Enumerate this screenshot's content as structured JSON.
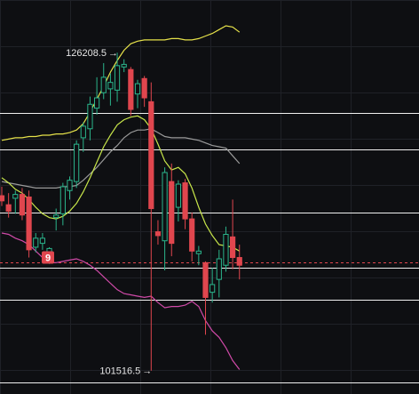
{
  "chart_data": {
    "type": "candlestick",
    "ylim": [
      99700,
      130300
    ],
    "grid": true,
    "colors": {
      "background": "#0e0f12",
      "grid": "#1f2127",
      "up": "#2bb58c",
      "down": "#e0464e",
      "upper_band": "#e6e24a",
      "lower_band": "#d04aa8",
      "middle_band": "#9a9a9a",
      "fast_ma": "#c8e64a",
      "horizontal_levels": "#f0f0f0",
      "dashed_level": "#e0464e",
      "badge": "#e0464e"
    },
    "horizontal_levels": [
      121500,
      118700,
      113800,
      109500,
      107000,
      100600
    ],
    "dashed_level": 109900,
    "annotations": {
      "high_label": "126208.5",
      "low_label": "101516.5",
      "high_value": 126208.5,
      "low_value": 101516.5,
      "badge_text": "9",
      "badge_value": 110300
    },
    "candles": [
      {
        "o": 115100,
        "h": 115800,
        "l": 114300,
        "c": 114700
      },
      {
        "o": 114400,
        "h": 115300,
        "l": 113400,
        "c": 113900
      },
      {
        "o": 114900,
        "h": 115500,
        "l": 113700,
        "c": 115200
      },
      {
        "o": 115200,
        "h": 115700,
        "l": 113200,
        "c": 113600
      },
      {
        "o": 115000,
        "h": 115500,
        "l": 110300,
        "c": 110900
      },
      {
        "o": 111100,
        "h": 112200,
        "l": 110700,
        "c": 111800
      },
      {
        "o": 111400,
        "h": 112200,
        "l": 110900,
        "c": 111800
      },
      {
        "o": 110300,
        "h": 111100,
        "l": 109800,
        "c": 111000
      },
      {
        "o": 113400,
        "h": 114100,
        "l": 112400,
        "c": 113600
      },
      {
        "o": 113700,
        "h": 116100,
        "l": 112800,
        "c": 115800
      },
      {
        "o": 115500,
        "h": 116600,
        "l": 114800,
        "c": 116300
      },
      {
        "o": 116200,
        "h": 119400,
        "l": 115700,
        "c": 119100
      },
      {
        "o": 119600,
        "h": 120800,
        "l": 118500,
        "c": 120500
      },
      {
        "o": 120300,
        "h": 122800,
        "l": 119400,
        "c": 122200
      },
      {
        "o": 121900,
        "h": 124300,
        "l": 121400,
        "c": 122700
      },
      {
        "o": 123100,
        "h": 125400,
        "l": 122600,
        "c": 124300
      },
      {
        "o": 123400,
        "h": 124600,
        "l": 122100,
        "c": 123900
      },
      {
        "o": 123300,
        "h": 126208.5,
        "l": 122400,
        "c": 125200
      },
      {
        "o": 125100,
        "h": 125700,
        "l": 124700,
        "c": 125300
      },
      {
        "o": 124900,
        "h": 125100,
        "l": 121300,
        "c": 121800
      },
      {
        "o": 123000,
        "h": 124100,
        "l": 121900,
        "c": 123800
      },
      {
        "o": 124200,
        "h": 124400,
        "l": 122000,
        "c": 122700
      },
      {
        "o": 122400,
        "h": 123900,
        "l": 101516.5,
        "c": 114100
      },
      {
        "o": 112300,
        "h": 113200,
        "l": 111300,
        "c": 112000
      },
      {
        "o": 111600,
        "h": 117300,
        "l": 109300,
        "c": 116900
      },
      {
        "o": 116200,
        "h": 117600,
        "l": 110400,
        "c": 111400
      },
      {
        "o": 114200,
        "h": 116300,
        "l": 113100,
        "c": 116000
      },
      {
        "o": 116100,
        "h": 116400,
        "l": 112500,
        "c": 113300
      },
      {
        "o": 113300,
        "h": 113800,
        "l": 110000,
        "c": 110800
      },
      {
        "o": 110600,
        "h": 111200,
        "l": 109700,
        "c": 110800
      },
      {
        "o": 109900,
        "h": 110000,
        "l": 104300,
        "c": 107200
      },
      {
        "o": 107600,
        "h": 109500,
        "l": 106800,
        "c": 108200
      },
      {
        "o": 108600,
        "h": 110900,
        "l": 107200,
        "c": 110200
      },
      {
        "o": 109700,
        "h": 112700,
        "l": 109200,
        "c": 112100
      },
      {
        "o": 111900,
        "h": 114800,
        "l": 109400,
        "c": 110300
      },
      {
        "o": 110300,
        "h": 111300,
        "l": 108600,
        "c": 109700
      }
    ],
    "upper_band": [
      119400,
      119500,
      119600,
      119600,
      119700,
      119700,
      119800,
      119800,
      119900,
      119900,
      120000,
      120200,
      120700,
      121600,
      122600,
      123600,
      124700,
      125600,
      126400,
      126900,
      127100,
      127200,
      127200,
      127200,
      127200,
      127300,
      127300,
      127200,
      127200,
      127300,
      127500,
      127700,
      128000,
      128300,
      128200,
      127800
    ],
    "middle_band": [
      116200,
      116100,
      116000,
      115900,
      115800,
      115700,
      115700,
      115700,
      115700,
      115800,
      115800,
      115900,
      116300,
      116800,
      117300,
      117900,
      118500,
      119000,
      119600,
      120000,
      120200,
      120200,
      120300,
      120000,
      119700,
      119600,
      119600,
      119600,
      119500,
      119400,
      119200,
      119000,
      118900,
      118800,
      118200,
      117600
    ],
    "lower_band": [
      112200,
      112100,
      111800,
      111600,
      111300,
      110800,
      110300,
      109900,
      109900,
      110000,
      110100,
      110200,
      110000,
      109700,
      109300,
      108800,
      108300,
      107800,
      107500,
      107400,
      107300,
      107200,
      107300,
      106800,
      106400,
      106500,
      106500,
      106600,
      106900,
      106500,
      105400,
      104600,
      104100,
      103300,
      102300,
      101600
    ],
    "fast_ma": [
      116500,
      116100,
      115600,
      115300,
      114800,
      114200,
      113700,
      113400,
      113300,
      113500,
      113900,
      114500,
      115400,
      116500,
      117700,
      118900,
      119800,
      120600,
      121000,
      121200,
      121300,
      121000,
      120300,
      119100,
      117800,
      117100,
      117300,
      116800,
      115700,
      114200,
      112900,
      112000,
      111300,
      111200,
      111100,
      110800
    ]
  }
}
